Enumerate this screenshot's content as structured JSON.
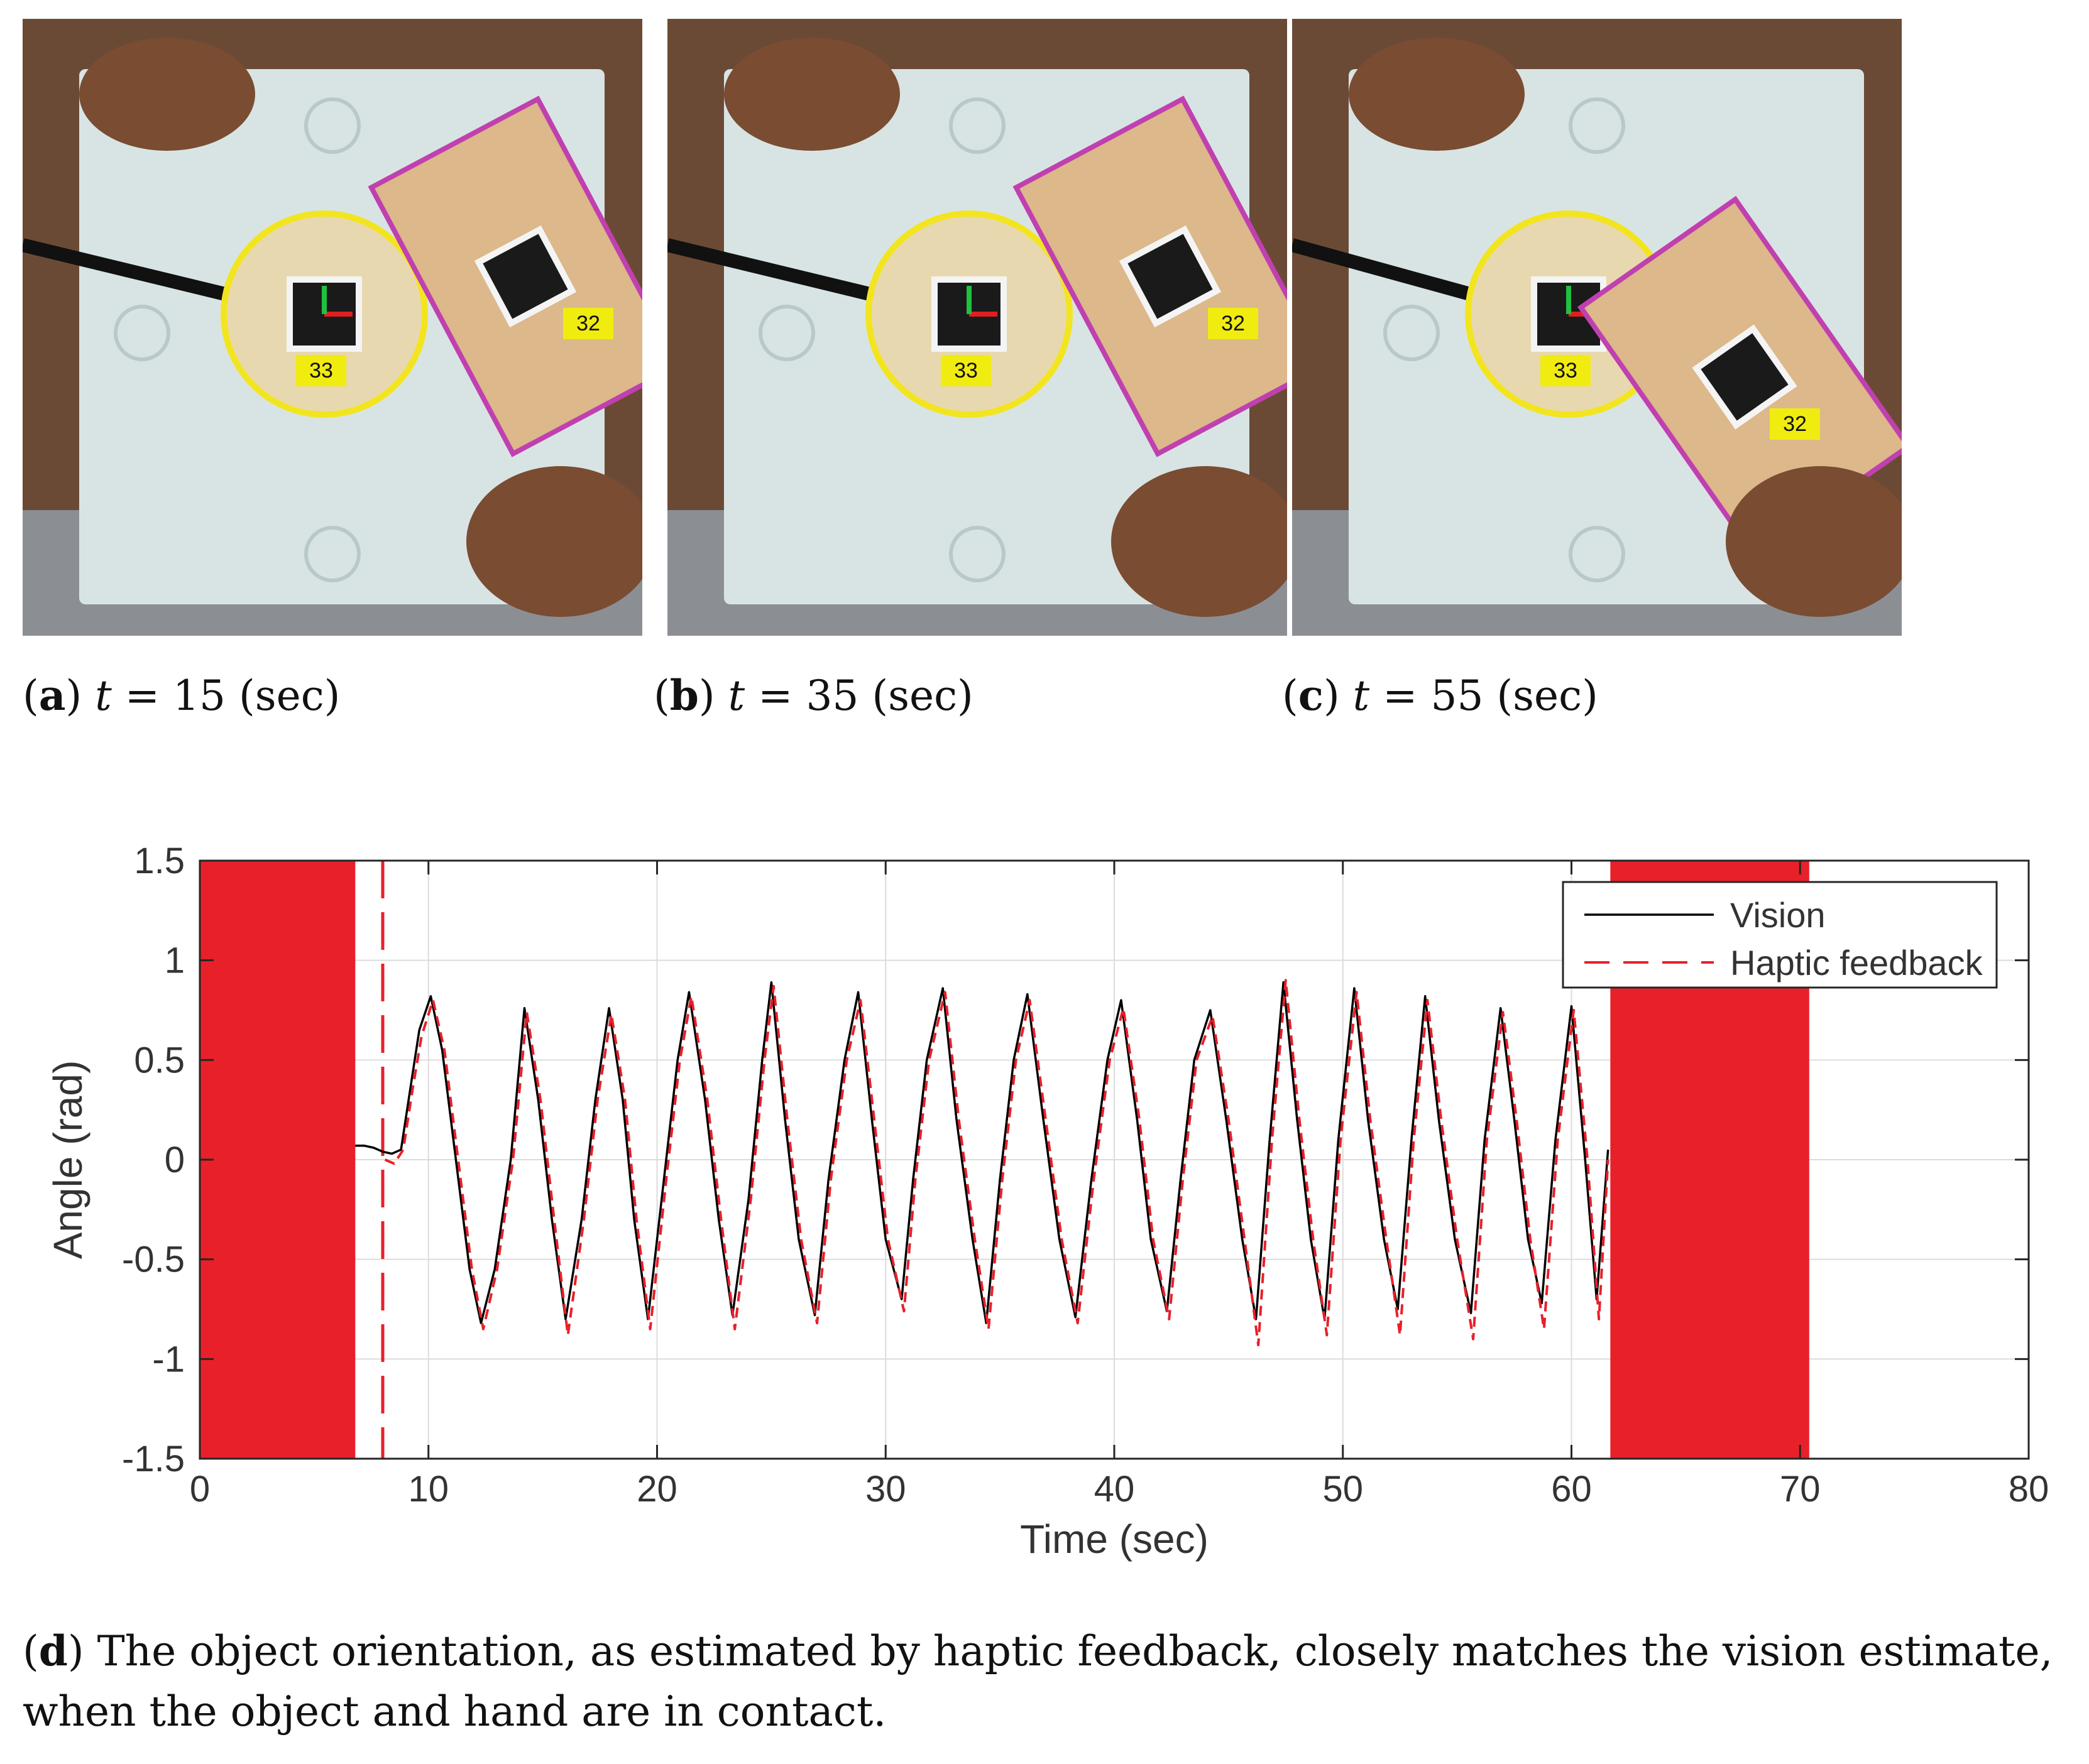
{
  "photos": [
    {
      "caption_letter": "a",
      "caption_var": "t",
      "caption_eq": " = ",
      "caption_value": "15",
      "caption_unit": " (sec)",
      "marker_fixed": "33",
      "marker_object": "32"
    },
    {
      "caption_letter": "b",
      "caption_var": "t",
      "caption_eq": " = ",
      "caption_value": "35",
      "caption_unit": " (sec)",
      "marker_fixed": "33",
      "marker_object": "32"
    },
    {
      "caption_letter": "c",
      "caption_var": "t",
      "caption_eq": " = ",
      "caption_value": "55",
      "caption_unit": " (sec)",
      "marker_fixed": "33",
      "marker_object": "32"
    }
  ],
  "chart_data": {
    "type": "line",
    "title": "",
    "xlabel": "Time (sec)",
    "ylabel": "Angle (rad)",
    "xlim": [
      0,
      80
    ],
    "ylim": [
      -1.5,
      1.5
    ],
    "xticks": [
      "0",
      "10",
      "20",
      "30",
      "40",
      "50",
      "60",
      "70",
      "80"
    ],
    "yticks": [
      "1.5",
      "1",
      "0.5",
      "0",
      "-0.5",
      "-1",
      "-1.5"
    ],
    "grid": true,
    "legend_position": "top-right",
    "series": [
      {
        "name": "Vision",
        "color": "#000000",
        "style": "solid",
        "x": [
          6.8,
          7.2,
          7.6,
          8.0,
          8.4,
          8.8,
          9.2,
          9.6,
          10.1,
          10.6,
          11.2,
          11.8,
          12.3,
          12.9,
          13.6,
          14.2,
          14.8,
          15.4,
          16.0,
          16.7,
          17.3,
          17.9,
          18.5,
          19.0,
          19.6,
          20.3,
          20.9,
          21.4,
          22.1,
          22.7,
          23.3,
          24.0,
          24.6,
          25.0,
          25.6,
          26.2,
          26.9,
          27.5,
          28.2,
          28.8,
          29.4,
          30.0,
          30.7,
          31.2,
          31.8,
          32.5,
          33.1,
          33.8,
          34.4,
          35.0,
          35.6,
          36.2,
          36.9,
          37.6,
          38.3,
          39.0,
          39.7,
          40.3,
          41.0,
          41.6,
          42.3,
          42.9,
          43.5,
          44.2,
          44.9,
          45.6,
          46.2,
          46.8,
          47.4,
          48.0,
          48.6,
          49.2,
          49.8,
          50.5,
          51.1,
          51.8,
          52.4,
          53.0,
          53.6,
          54.2,
          54.9,
          55.6,
          56.2,
          56.9,
          57.5,
          58.1,
          58.7,
          59.3,
          60.0,
          60.6,
          61.1,
          61.6
        ],
        "y": [
          0.07,
          0.07,
          0.06,
          0.04,
          0.03,
          0.05,
          0.35,
          0.65,
          0.82,
          0.55,
          0.0,
          -0.55,
          -0.82,
          -0.55,
          0.0,
          0.76,
          0.3,
          -0.3,
          -0.8,
          -0.3,
          0.3,
          0.76,
          0.3,
          -0.3,
          -0.8,
          -0.1,
          0.5,
          0.84,
          0.3,
          -0.3,
          -0.78,
          -0.2,
          0.5,
          0.89,
          0.2,
          -0.4,
          -0.78,
          -0.1,
          0.5,
          0.84,
          0.2,
          -0.4,
          -0.7,
          -0.1,
          0.5,
          0.86,
          0.2,
          -0.4,
          -0.82,
          -0.1,
          0.5,
          0.83,
          0.2,
          -0.4,
          -0.79,
          -0.1,
          0.5,
          0.8,
          0.2,
          -0.4,
          -0.76,
          -0.1,
          0.5,
          0.75,
          0.2,
          -0.4,
          -0.8,
          0.1,
          0.89,
          0.2,
          -0.4,
          -0.8,
          0.1,
          0.86,
          0.2,
          -0.4,
          -0.75,
          0.1,
          0.82,
          0.2,
          -0.4,
          -0.77,
          0.1,
          0.76,
          0.2,
          -0.4,
          -0.72,
          0.1,
          0.77,
          0.0,
          -0.7,
          0.05
        ]
      },
      {
        "name": "Haptic feedback",
        "color": "#e8202a",
        "style": "dashed",
        "x": [
          8.1,
          8.5,
          8.9,
          9.3,
          9.7,
          10.2,
          10.7,
          11.3,
          11.9,
          12.4,
          13.0,
          13.7,
          14.3,
          14.9,
          15.5,
          16.1,
          16.8,
          17.4,
          18.0,
          18.6,
          19.1,
          19.7,
          20.4,
          21.0,
          21.5,
          22.2,
          22.8,
          23.4,
          24.1,
          24.7,
          25.1,
          25.7,
          26.3,
          27.0,
          27.6,
          28.3,
          28.9,
          29.5,
          30.1,
          30.8,
          31.3,
          31.9,
          32.6,
          33.2,
          33.9,
          34.5,
          35.1,
          35.7,
          36.3,
          37.0,
          37.7,
          38.4,
          39.1,
          39.8,
          40.4,
          41.1,
          41.7,
          42.4,
          43.0,
          43.6,
          44.3,
          45.0,
          45.7,
          46.3,
          46.9,
          47.5,
          48.1,
          48.7,
          49.3,
          49.9,
          50.6,
          51.2,
          51.9,
          52.5,
          53.1,
          53.7,
          54.3,
          55.0,
          55.7,
          56.3,
          57.0,
          57.6,
          58.2,
          58.8,
          59.4,
          60.1,
          60.7,
          61.2,
          61.6
        ],
        "y": [
          0.0,
          -0.02,
          0.05,
          0.35,
          0.62,
          0.8,
          0.55,
          0.0,
          -0.55,
          -0.85,
          -0.55,
          0.0,
          0.74,
          0.3,
          -0.3,
          -0.88,
          -0.3,
          0.3,
          0.73,
          0.3,
          -0.3,
          -0.85,
          -0.1,
          0.5,
          0.82,
          0.3,
          -0.3,
          -0.85,
          -0.2,
          0.5,
          0.87,
          0.2,
          -0.4,
          -0.82,
          -0.1,
          0.5,
          0.8,
          0.2,
          -0.4,
          -0.76,
          -0.1,
          0.5,
          0.84,
          0.2,
          -0.4,
          -0.85,
          -0.1,
          0.5,
          0.8,
          0.2,
          -0.4,
          -0.82,
          -0.1,
          0.5,
          0.76,
          0.2,
          -0.4,
          -0.8,
          -0.1,
          0.5,
          0.72,
          0.2,
          -0.4,
          -0.93,
          0.1,
          0.9,
          0.2,
          -0.4,
          -0.88,
          0.1,
          0.84,
          0.2,
          -0.4,
          -0.88,
          0.1,
          0.8,
          0.2,
          -0.4,
          -0.9,
          0.1,
          0.74,
          0.2,
          -0.4,
          -0.85,
          0.1,
          0.75,
          0.0,
          -0.8,
          0.0
        ]
      }
    ],
    "noise_regions": [
      {
        "from": 0,
        "to": 6.8,
        "ymin": -1.5,
        "ymax": 1.5,
        "color": "#e8202a"
      },
      {
        "from": 61.7,
        "to": 70.4,
        "ymin": -1.5,
        "ymax": 1.5,
        "color": "#e8202a"
      }
    ],
    "spike": {
      "x": 8.0,
      "ymin": -1.5,
      "ymax": 1.5,
      "color": "#e8202a"
    }
  },
  "main_caption": {
    "letter": "d",
    "text": "The object orientation, as estimated by haptic feedback, closely matches the vision estimate, when the object and hand are in contact."
  }
}
